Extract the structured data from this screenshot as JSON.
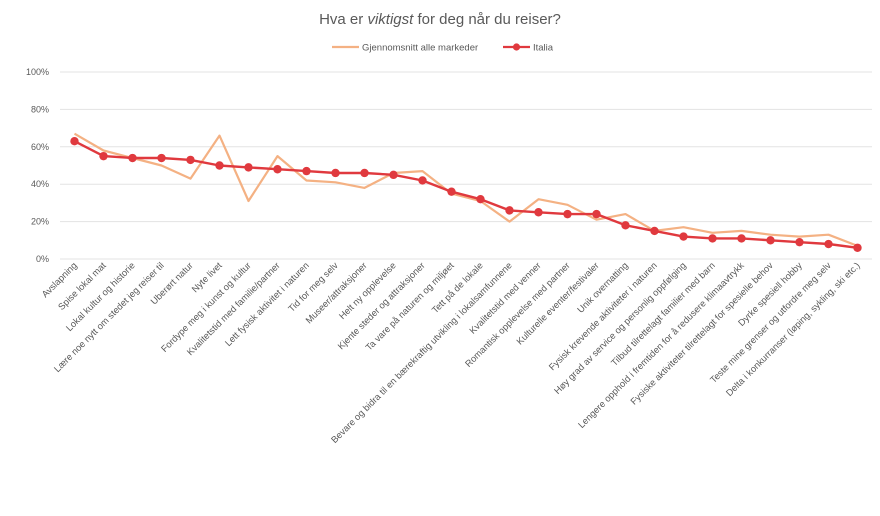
{
  "chart_data": {
    "type": "line",
    "title_parts": [
      "Hva er ",
      "viktigst",
      " for deg når du reiser?"
    ],
    "xlabel": "",
    "ylabel": "",
    "ylim": [
      0,
      100
    ],
    "yticks": [
      0,
      20,
      40,
      60,
      80,
      100
    ],
    "ytick_labels": [
      "0%",
      "20%",
      "40%",
      "60%",
      "80%",
      "100%"
    ],
    "grid": true,
    "legend_position": "top-center",
    "categories": [
      "Avslapning",
      "Spise lokal mat",
      "Lokal kultur og historie",
      "Lære noe nytt om stedet jeg reiser til",
      "Uberørt natur",
      "Nyte livet",
      "Fordype meg i kunst og kultur",
      "Kvalitetstid med familie/partner",
      "Lett fysisk aktivitet i naturen",
      "Tid for meg selv",
      "Museer/attraksjoner",
      "Helt ny opplevelse",
      "Kjente steder og attraksjoner",
      "Ta vare på naturen og miljøet",
      "Tett på de lokale",
      "Bevare og bidra til en bærekraftig utvikling i lokalsamfunnene",
      "Kvalitetstid med venner",
      "Romantisk opplevelse med partner",
      "Kulturelle eventer/festivaler",
      "Unik overnatting",
      "Fysisk krevende aktiviteter i naturen",
      "Høy grad av service og personlig oppfølging",
      "Tilbud tilrettelagt familier med barn",
      "Lengere opphold i fremtiden for å redusere klimaavtrykk",
      "Fysiske aktiviteter tilrettelagt for spesielle behov",
      "Dyrke spesiell hobby",
      "Teste mine grenser og utfordre meg selv",
      "Delta i konkurranser (løping, sykling, ski etc.)"
    ],
    "series": [
      {
        "name": "Gjennomsnitt alle markeder",
        "color": "#F4B183",
        "markers": false,
        "values": [
          67,
          58,
          54,
          50,
          43,
          66,
          31,
          55,
          42,
          41,
          38,
          46,
          47,
          35,
          31,
          20,
          32,
          29,
          21,
          24,
          15,
          17,
          14,
          15,
          13,
          12,
          13,
          7
        ]
      },
      {
        "name": "Italia",
        "color": "#E0393E",
        "markers": true,
        "values": [
          63,
          55,
          54,
          54,
          53,
          50,
          49,
          48,
          47,
          46,
          46,
          45,
          42,
          36,
          32,
          26,
          25,
          24,
          24,
          18,
          15,
          12,
          11,
          11,
          10,
          9,
          8,
          6
        ]
      }
    ]
  }
}
